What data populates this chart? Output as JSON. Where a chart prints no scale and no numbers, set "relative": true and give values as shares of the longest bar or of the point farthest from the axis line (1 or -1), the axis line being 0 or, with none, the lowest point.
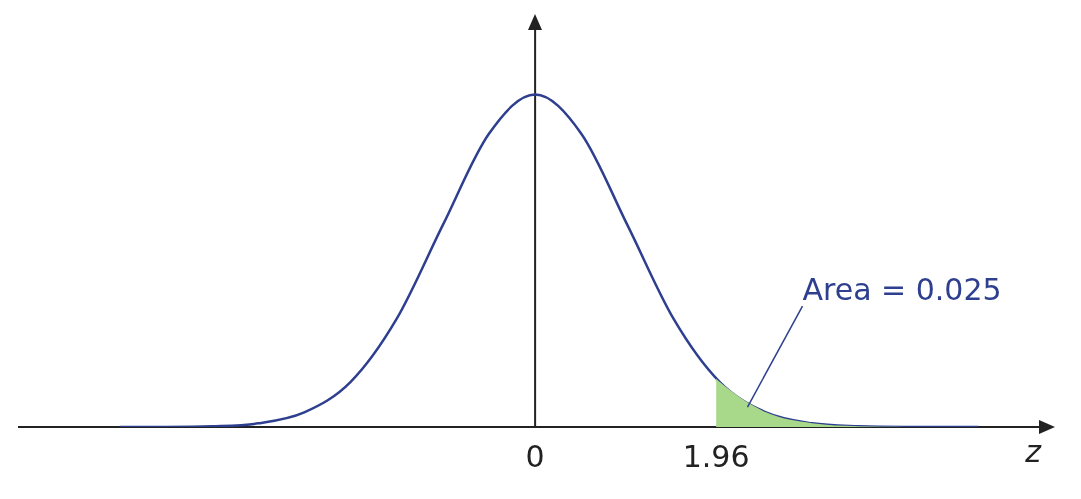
{
  "chart_data": {
    "type": "line",
    "relative": true,
    "xlabel": "z",
    "xlim": [
      -5.6,
      5.5
    ],
    "xticks": [
      0,
      1.96
    ],
    "grid": false,
    "legend": false,
    "marker": "none",
    "line_style": "solid",
    "ref_lines": [
      {
        "axis": "x",
        "value": 0,
        "color": "#222222"
      }
    ],
    "annotations": [
      {
        "text": "Area = 0.025",
        "x": 2.3,
        "y": 0.06
      }
    ],
    "series": [
      {
        "type": "line",
        "color": "#2e3f8f",
        "x": [
          -4.5,
          -4,
          -3.5,
          -3,
          -2.5,
          -2,
          -1.5,
          -1,
          -0.5,
          0,
          0.5,
          1,
          1.5,
          2,
          2.5,
          3,
          3.5,
          4,
          4.5,
          4.8
        ],
        "values": [
          0,
          0,
          0.002,
          0.011,
          0.044,
          0.135,
          0.325,
          0.607,
          0.882,
          1,
          0.882,
          0.607,
          0.325,
          0.135,
          0.044,
          0.011,
          0.002,
          0,
          0,
          0
        ]
      },
      {
        "type": "area",
        "color": "#a8d88a",
        "x": [
          1.96,
          2,
          2.5,
          3,
          3.5,
          4
        ],
        "values": [
          0.146,
          0.135,
          0.044,
          0.011,
          0.002,
          0
        ]
      }
    ]
  }
}
